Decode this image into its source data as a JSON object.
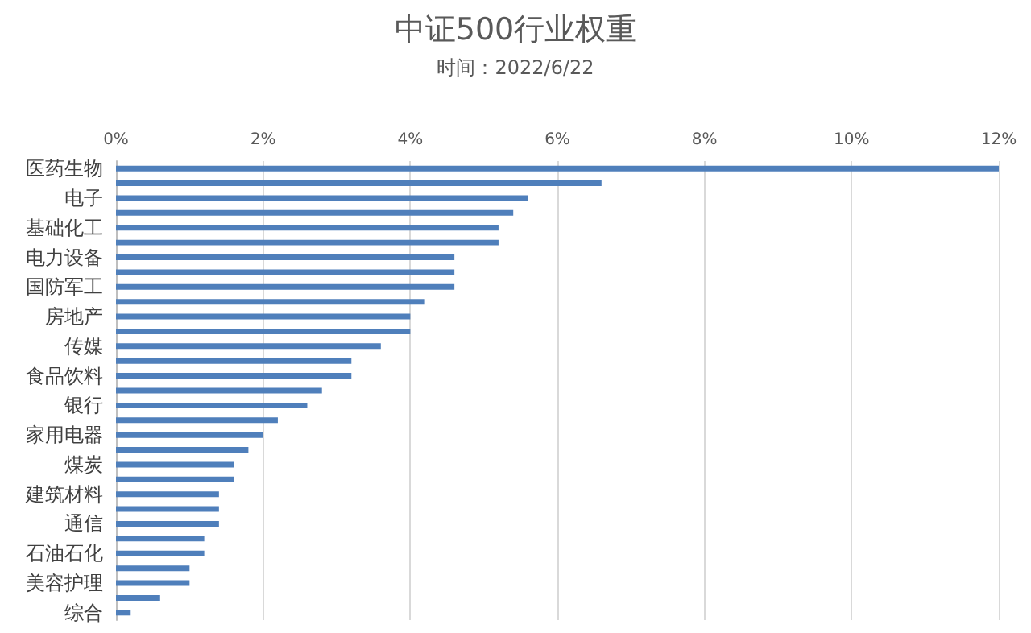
{
  "chart_data": {
    "type": "bar",
    "orientation": "horizontal",
    "title": "中证500行业权重",
    "subtitle": "时间：2022/6/22",
    "categories": [
      "医药生物",
      null,
      "电子",
      null,
      "基础化工",
      null,
      "电力设备",
      null,
      "国防军工",
      null,
      "房地产",
      null,
      "传媒",
      null,
      "食品饮料",
      null,
      "银行",
      null,
      "家用电器",
      null,
      "煤炭",
      null,
      "建筑材料",
      null,
      "通信",
      null,
      "石油石化",
      null,
      "美容护理",
      null,
      "综合"
    ],
    "values": [
      12,
      6.6,
      5.6,
      5.4,
      5.2,
      5.2,
      4.6,
      4.6,
      4.6,
      4.2,
      4.0,
      4.0,
      3.6,
      3.2,
      3.2,
      2.8,
      2.6,
      2.2,
      2.0,
      1.8,
      1.6,
      1.6,
      1.4,
      1.4,
      1.4,
      1.2,
      1.2,
      1.0,
      1.0,
      0.6,
      0.2
    ],
    "color": "#4f7fbb",
    "xlim": [
      0,
      12
    ],
    "xticks": [
      {
        "value": 0,
        "label": "0%"
      },
      {
        "value": 2,
        "label": "2%"
      },
      {
        "value": 4,
        "label": "4%"
      },
      {
        "value": 6,
        "label": "6%"
      },
      {
        "value": 8,
        "label": "8%"
      },
      {
        "value": 10,
        "label": "10%"
      },
      {
        "value": 12,
        "label": "12%"
      }
    ],
    "grid": "x"
  }
}
